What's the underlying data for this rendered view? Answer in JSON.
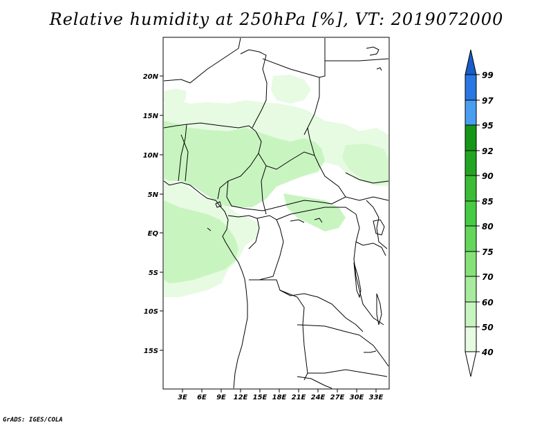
{
  "title": "Relative humidity at 250hPa [%], VT: 2019072000",
  "credit": "GrADS: IGES/COLA",
  "map": {
    "lat_labels": [
      "20N",
      "15N",
      "10N",
      "5N",
      "EQ",
      "5S",
      "10S",
      "15S"
    ],
    "lon_labels": [
      "3E",
      "6E",
      "9E",
      "12E",
      "15E",
      "18E",
      "21E",
      "24E",
      "27E",
      "30E",
      "33E"
    ],
    "fill_colors": {
      "40-50": "#e6fbe2",
      "50-60": "#c8f4c0"
    }
  },
  "colorbar": {
    "labels": [
      "40",
      "50",
      "60",
      "70",
      "75",
      "80",
      "85",
      "90",
      "92",
      "95",
      "97",
      "99"
    ],
    "colors": [
      "#ffffff",
      "#e6fbe2",
      "#c8f4c0",
      "#a6ec9c",
      "#86e278",
      "#64d65a",
      "#3cc83c",
      "#22b022",
      "#169616",
      "#1a8c1a",
      "#5aa6f0",
      "#2a72e0",
      "#1a5ad0"
    ]
  }
}
